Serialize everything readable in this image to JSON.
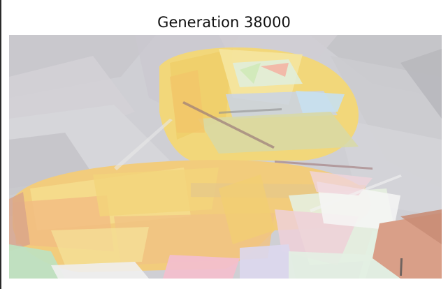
{
  "figure": {
    "title": "Generation 38000"
  },
  "image": {
    "description_kind": "evolved-polygon-art",
    "palette": {
      "background_gray": "#cfcfd3",
      "yellow": "#f2d77a",
      "light_yellow": "#f5e6a0",
      "orange": "#f3c98a",
      "pink": "#f3c6cf",
      "mint": "#dfeede",
      "blue_gray": "#c9d3e6",
      "salmon": "#d9a08b",
      "green": "#bcdcbc",
      "white": "#f6f6f6"
    }
  }
}
